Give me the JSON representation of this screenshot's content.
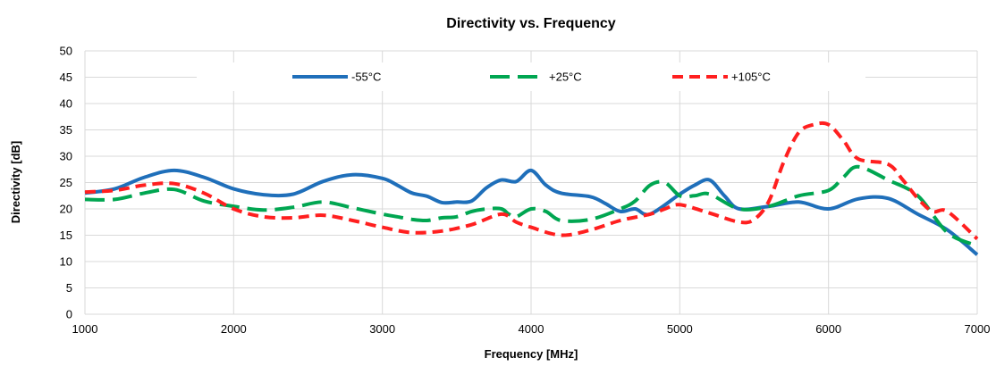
{
  "chart_data": {
    "type": "line",
    "title": "Directivity vs. Frequency",
    "xlabel": "Frequency [MHz]",
    "ylabel": "Directivity [dB]",
    "xlim": [
      1000,
      7000
    ],
    "ylim": [
      0,
      50
    ],
    "xticks": [
      1000,
      2000,
      3000,
      4000,
      5000,
      6000,
      7000
    ],
    "yticks": [
      0,
      5,
      10,
      15,
      20,
      25,
      30,
      35,
      40,
      45,
      50
    ],
    "grid": true,
    "legend": "top",
    "series": [
      {
        "name": "-55°C",
        "color": "#1f6fba",
        "dash": "solid",
        "x": [
          1000,
          1200,
          1400,
          1600,
          1800,
          2000,
          2200,
          2400,
          2600,
          2800,
          3000,
          3100,
          3200,
          3300,
          3400,
          3500,
          3600,
          3700,
          3800,
          3900,
          4000,
          4100,
          4200,
          4400,
          4500,
          4600,
          4700,
          4800,
          5000,
          5100,
          5200,
          5300,
          5400,
          5600,
          5800,
          6000,
          6200,
          6400,
          6600,
          6800,
          7000
        ],
        "y": [
          23,
          23.8,
          26.0,
          27.3,
          26.0,
          23.8,
          22.7,
          22.8,
          25.2,
          26.5,
          25.8,
          24.5,
          23.0,
          22.4,
          21.2,
          21.3,
          21.5,
          24.0,
          25.5,
          25.2,
          27.3,
          24.5,
          23.0,
          22.3,
          21.0,
          19.5,
          20.0,
          19.0,
          22.8,
          24.5,
          25.5,
          22.5,
          20.0,
          20.5,
          21.3,
          20.0,
          21.9,
          22.0,
          19.0,
          16.0,
          11.3
        ]
      },
      {
        "name": "+25°C",
        "color": "#00a651",
        "dash": "long",
        "x": [
          1000,
          1200,
          1400,
          1600,
          1800,
          2000,
          2200,
          2400,
          2600,
          2800,
          3000,
          3100,
          3200,
          3300,
          3400,
          3500,
          3600,
          3700,
          3800,
          3850,
          3900,
          4000,
          4100,
          4200,
          4400,
          4600,
          4700,
          4800,
          4900,
          5000,
          5100,
          5200,
          5400,
          5600,
          5800,
          6000,
          6100,
          6200,
          6400,
          6600,
          6800,
          7000
        ],
        "y": [
          21.8,
          21.8,
          23.0,
          23.7,
          21.5,
          20.5,
          19.8,
          20.3,
          21.3,
          20.2,
          19.0,
          18.5,
          18.0,
          17.8,
          18.3,
          18.5,
          19.5,
          20.0,
          20.0,
          19.0,
          18.5,
          20.0,
          19.5,
          17.8,
          18.0,
          20.0,
          21.5,
          24.5,
          25.0,
          22.5,
          22.5,
          22.8,
          20.0,
          20.5,
          22.5,
          23.5,
          26.0,
          28.0,
          25.5,
          22.5,
          15.5,
          13.0
        ]
      },
      {
        "name": "+105°C",
        "color": "#ff1f1f",
        "dash": "medium",
        "x": [
          1000,
          1200,
          1400,
          1600,
          1800,
          2000,
          2200,
          2400,
          2600,
          2800,
          3000,
          3200,
          3400,
          3600,
          3800,
          3900,
          4000,
          4200,
          4400,
          4600,
          4800,
          4900,
          5000,
          5200,
          5400,
          5500,
          5600,
          5700,
          5800,
          5900,
          6000,
          6100,
          6200,
          6400,
          6500,
          6600,
          6700,
          6800,
          7000
        ],
        "y": [
          23.2,
          23.5,
          24.5,
          24.8,
          23.0,
          20.0,
          18.5,
          18.3,
          18.8,
          17.8,
          16.5,
          15.5,
          15.8,
          17.0,
          19.0,
          17.5,
          16.5,
          15.0,
          16.0,
          17.8,
          19.0,
          20.0,
          20.8,
          19.2,
          17.5,
          18.0,
          21.5,
          29.0,
          34.5,
          36.0,
          36.0,
          33.0,
          29.5,
          28.5,
          25.5,
          22.0,
          19.5,
          19.5,
          14.3
        ]
      }
    ]
  }
}
